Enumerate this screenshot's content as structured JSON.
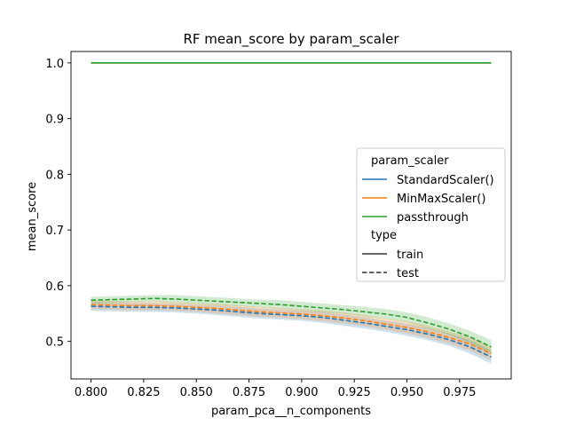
{
  "chart_data": {
    "type": "line",
    "title": "RF mean_score by param_scaler",
    "xlabel": "param_pca__n_components",
    "ylabel": "mean_score",
    "xlim": [
      0.7905,
      0.9995
    ],
    "ylim": [
      0.4325,
      1.0205
    ],
    "xticks": [
      0.8,
      0.825,
      0.85,
      0.875,
      0.9,
      0.925,
      0.95,
      0.975
    ],
    "xtick_labels": [
      "0.800",
      "0.825",
      "0.850",
      "0.875",
      "0.900",
      "0.925",
      "0.950",
      "0.975"
    ],
    "yticks": [
      0.5,
      0.6,
      0.7,
      0.8,
      0.9,
      1.0
    ],
    "ytick_labels": [
      "0.5",
      "0.6",
      "0.7",
      "0.8",
      "0.9",
      "1.0"
    ],
    "grid": false,
    "legend": {
      "placement": "center-right",
      "hue_title": "param_scaler",
      "style_title": "type",
      "style_entries": [
        {
          "label": "train",
          "dash": "solid"
        },
        {
          "label": "test",
          "dash": "dashed"
        }
      ]
    },
    "x": [
      0.8,
      0.81,
      0.82,
      0.83,
      0.84,
      0.85,
      0.86,
      0.87,
      0.88,
      0.89,
      0.9,
      0.91,
      0.92,
      0.93,
      0.94,
      0.95,
      0.96,
      0.97,
      0.98,
      0.99
    ],
    "series": [
      {
        "name": "StandardScaler()",
        "color": "#1f77b4",
        "train": [
          1.0,
          1.0,
          1.0,
          1.0,
          1.0,
          1.0,
          1.0,
          1.0,
          1.0,
          1.0,
          1.0,
          1.0,
          1.0,
          1.0,
          1.0,
          1.0,
          1.0,
          1.0,
          1.0,
          1.0
        ],
        "test": [
          0.563,
          0.562,
          0.561,
          0.561,
          0.56,
          0.558,
          0.556,
          0.553,
          0.55,
          0.548,
          0.546,
          0.543,
          0.538,
          0.533,
          0.527,
          0.521,
          0.513,
          0.503,
          0.49,
          0.472
        ],
        "test_band": [
          0.008,
          0.008,
          0.008,
          0.008,
          0.008,
          0.008,
          0.009,
          0.009,
          0.009,
          0.009,
          0.009,
          0.01,
          0.01,
          0.01,
          0.01,
          0.011,
          0.011,
          0.011,
          0.012,
          0.012
        ]
      },
      {
        "name": "MinMaxScaler()",
        "color": "#ff7f0e",
        "train": [
          1.0,
          1.0,
          1.0,
          1.0,
          1.0,
          1.0,
          1.0,
          1.0,
          1.0,
          1.0,
          1.0,
          1.0,
          1.0,
          1.0,
          1.0,
          1.0,
          1.0,
          1.0,
          1.0,
          1.0
        ],
        "test": [
          0.566,
          0.565,
          0.564,
          0.564,
          0.563,
          0.561,
          0.559,
          0.556,
          0.553,
          0.551,
          0.549,
          0.546,
          0.542,
          0.537,
          0.531,
          0.525,
          0.517,
          0.507,
          0.495,
          0.478
        ],
        "test_band": [
          0.008,
          0.008,
          0.008,
          0.008,
          0.008,
          0.008,
          0.009,
          0.009,
          0.009,
          0.009,
          0.009,
          0.01,
          0.01,
          0.01,
          0.01,
          0.011,
          0.011,
          0.011,
          0.012,
          0.012
        ]
      },
      {
        "name": "passthrough",
        "color": "#2ca02c",
        "train": [
          1.0,
          1.0,
          1.0,
          1.0,
          1.0,
          1.0,
          1.0,
          1.0,
          1.0,
          1.0,
          1.0,
          1.0,
          1.0,
          1.0,
          1.0,
          1.0,
          1.0,
          1.0,
          1.0,
          1.0
        ],
        "test": [
          0.574,
          0.575,
          0.576,
          0.577,
          0.576,
          0.574,
          0.572,
          0.57,
          0.568,
          0.566,
          0.563,
          0.56,
          0.557,
          0.553,
          0.549,
          0.543,
          0.533,
          0.522,
          0.508,
          0.49
        ],
        "test_band": [
          0.006,
          0.006,
          0.006,
          0.006,
          0.007,
          0.007,
          0.007,
          0.007,
          0.007,
          0.008,
          0.008,
          0.008,
          0.008,
          0.009,
          0.009,
          0.009,
          0.01,
          0.01,
          0.011,
          0.012
        ]
      }
    ]
  }
}
